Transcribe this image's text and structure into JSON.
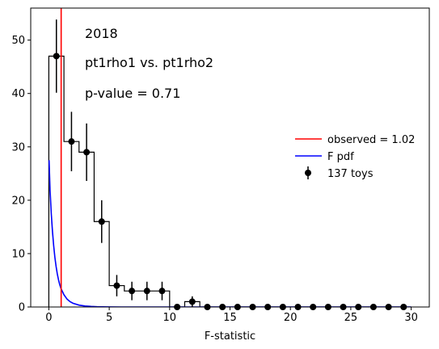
{
  "chart_data": {
    "type": "histogram",
    "xlabel": "F-statistic",
    "ylabel": "",
    "xlim": [
      -1.5,
      31.5
    ],
    "ylim": [
      0,
      56
    ],
    "xticks": [
      0,
      5,
      10,
      15,
      20,
      25,
      30
    ],
    "yticks": [
      0,
      10,
      20,
      30,
      40,
      50
    ],
    "annotations": [
      "2018",
      "pt1rho1 vs. pt1rho2",
      "p-value = 0.71"
    ],
    "observed_value": 1.02,
    "legend_position": "center-right",
    "legend": {
      "observed": "observed = 1.02",
      "pdf": "F pdf",
      "toys": "137 toys"
    },
    "bin_edges": [
      0,
      1.25,
      2.5,
      3.75,
      5.0,
      6.25,
      7.5,
      8.75,
      10.0,
      11.25,
      12.5,
      13.75,
      15.0,
      16.25,
      17.5,
      18.75,
      20.0,
      21.25,
      22.5,
      23.75,
      25.0,
      26.25,
      27.5,
      28.75,
      30.0
    ],
    "counts": [
      47,
      31,
      29,
      16,
      4,
      3,
      3,
      3,
      0,
      1,
      0,
      0,
      0,
      0,
      0,
      0,
      0,
      0,
      0,
      0,
      0,
      0,
      0,
      0
    ],
    "pdf_curve": {
      "x": [
        0.02,
        0.1,
        0.2,
        0.3,
        0.4,
        0.5,
        0.6,
        0.7,
        0.8,
        0.9,
        1.0,
        1.25,
        1.5,
        1.75,
        2.0,
        2.5,
        3.0,
        3.5,
        4.0,
        5.0,
        6.0,
        7.0,
        8.0,
        10.0,
        15.0,
        20.0,
        25.0,
        30.0
      ],
      "y": [
        27.5,
        22.0,
        17.5,
        14.2,
        11.5,
        9.3,
        7.6,
        6.2,
        5.1,
        4.2,
        3.5,
        2.3,
        1.5,
        1.0,
        0.7,
        0.35,
        0.18,
        0.1,
        0.05,
        0.02,
        0.0,
        0.0,
        0.0,
        0.0,
        0.0,
        0.0,
        0.0,
        0.0
      ]
    },
    "colors": {
      "observed": "#ff0000",
      "pdf": "#0000ff",
      "toys": "#000000",
      "hist": "#000000"
    }
  }
}
